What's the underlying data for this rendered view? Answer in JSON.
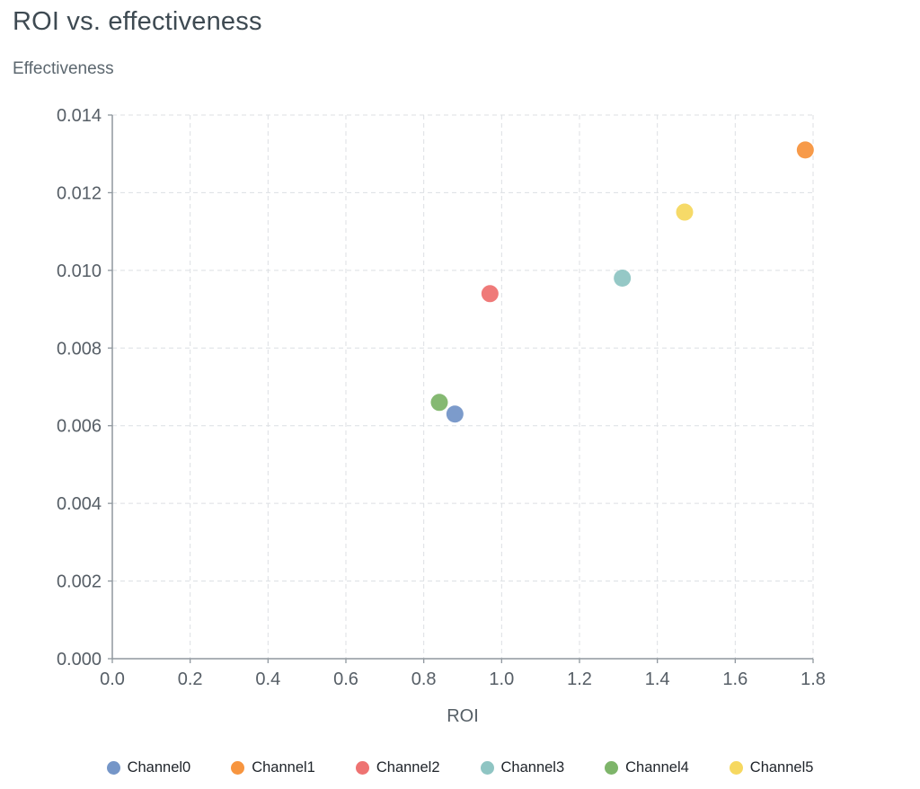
{
  "header": {
    "title": "ROI vs. effectiveness",
    "subtitle": "Effectiveness"
  },
  "chart_data": {
    "type": "scatter",
    "title": "ROI vs. effectiveness",
    "xlabel": "ROI",
    "ylabel": "Effectiveness",
    "xlim": [
      0.0,
      1.8
    ],
    "ylim": [
      0.0,
      0.014
    ],
    "x_ticks": [
      0.0,
      0.2,
      0.4,
      0.6,
      0.8,
      1.0,
      1.2,
      1.4,
      1.6,
      1.8
    ],
    "y_ticks": [
      0.0,
      0.002,
      0.004,
      0.006,
      0.008,
      0.01,
      0.012,
      0.014
    ],
    "grid": "dashed",
    "legend_position": "bottom",
    "series": [
      {
        "name": "Channel0",
        "color": "#7596c8",
        "x": 0.88,
        "y": 0.0063
      },
      {
        "name": "Channel1",
        "color": "#f7953f",
        "x": 1.78,
        "y": 0.0131
      },
      {
        "name": "Channel2",
        "color": "#ee7372",
        "x": 0.97,
        "y": 0.0094
      },
      {
        "name": "Channel3",
        "color": "#8fc5c3",
        "x": 1.31,
        "y": 0.0098
      },
      {
        "name": "Channel4",
        "color": "#7eb56a",
        "x": 0.84,
        "y": 0.0066
      },
      {
        "name": "Channel5",
        "color": "#f6d860",
        "x": 1.47,
        "y": 0.0115
      }
    ],
    "colors": {
      "grid": "#dcdfe3",
      "axis": "#8f979e",
      "tick_text": "#565e66",
      "title_text": "#3e4a52"
    }
  }
}
